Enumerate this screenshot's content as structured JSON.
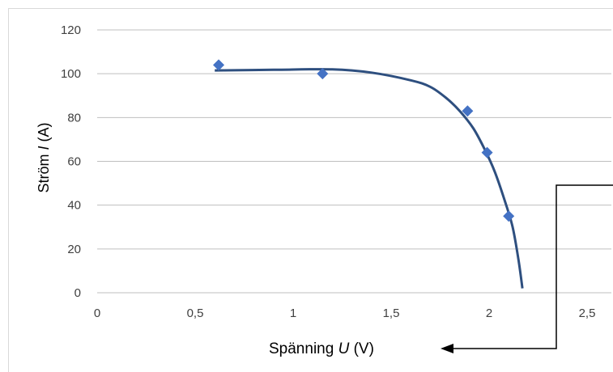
{
  "chart_data": {
    "type": "scatter",
    "xlabel_prefix": "Spänning ",
    "xlabel_var": "U",
    "xlabel_unit": " (V)",
    "ylabel_prefix": "Ström ",
    "ylabel_var": "I",
    "ylabel_unit": " (A)",
    "x_ticks": [
      "0",
      "0,5",
      "1",
      "1,5",
      "2",
      "2,5"
    ],
    "y_ticks": [
      "0",
      "20",
      "40",
      "60",
      "80",
      "100",
      "120"
    ],
    "xlim": [
      0,
      2.5
    ],
    "ylim": [
      0,
      120
    ],
    "grid": true,
    "legend": "none",
    "series": [
      {
        "color": "#4472c4",
        "marker": "diamond",
        "points": [
          [
            0.62,
            104
          ],
          [
            1.15,
            100
          ],
          [
            1.89,
            83
          ],
          [
            1.99,
            64
          ],
          [
            2.1,
            35
          ]
        ]
      }
    ],
    "trendline": {
      "color": "#2e4f7f",
      "points": [
        [
          0.6,
          101.5
        ],
        [
          0.9,
          101.8
        ],
        [
          1.2,
          102
        ],
        [
          1.4,
          100.5
        ],
        [
          1.6,
          97
        ],
        [
          1.7,
          94
        ],
        [
          1.78,
          89
        ],
        [
          1.85,
          83
        ],
        [
          1.92,
          75
        ],
        [
          1.98,
          65
        ],
        [
          2.03,
          55
        ],
        [
          2.08,
          42
        ],
        [
          2.12,
          30
        ],
        [
          2.15,
          15
        ],
        [
          2.17,
          2
        ]
      ]
    }
  }
}
